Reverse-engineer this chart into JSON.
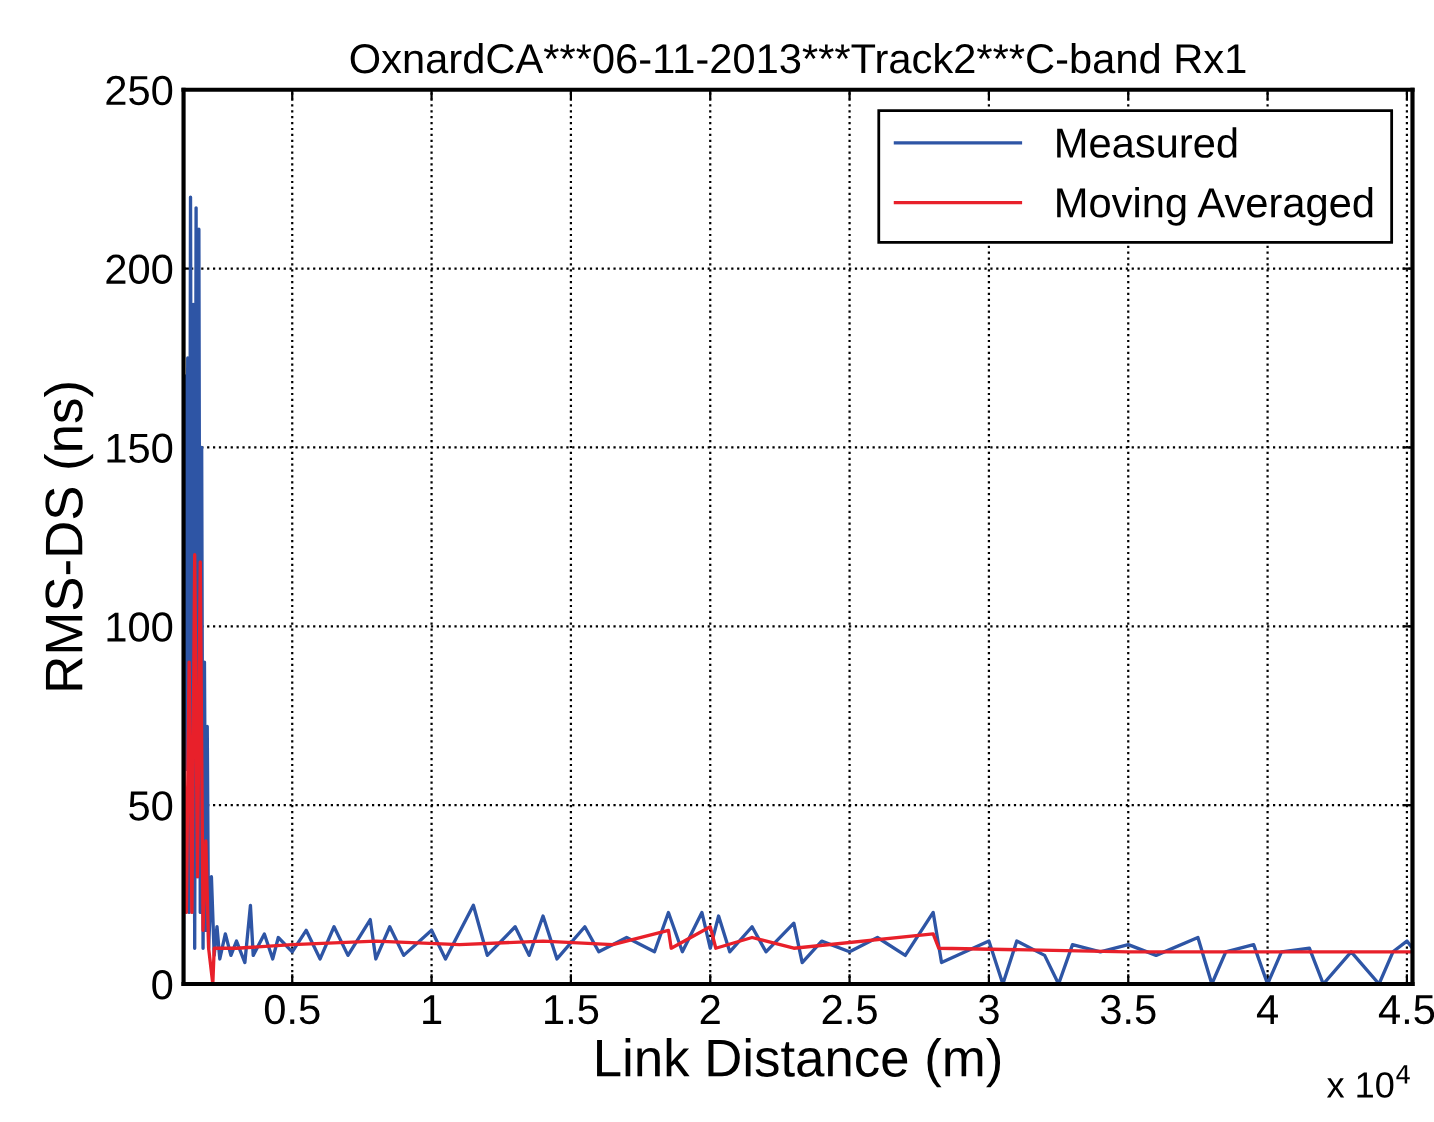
{
  "chart_data": {
    "type": "line",
    "title": "OxnardCA***06-11-2013***Track2***C-band Rx1",
    "xlabel": "Link Distance (m)",
    "ylabel": "RMS-DS (ns)",
    "annotations": [
      "x 10$^{4}$"
    ],
    "xlim": [
      0.11,
      4.52
    ],
    "ylim": [
      0,
      250
    ],
    "xticks": [
      0.5,
      1,
      1.5,
      2,
      2.5,
      3,
      3.5,
      4,
      4.5
    ],
    "yticks": [
      0,
      50,
      100,
      150,
      200,
      250
    ],
    "grid": true,
    "legend": "top right",
    "line_style": "solid",
    "marker": "none",
    "series": [
      {
        "name": "Measured",
        "color": "#2e55a5",
        "x": [
          0.11,
          0.115,
          0.12,
          0.125,
          0.13,
          0.135,
          0.14,
          0.145,
          0.15,
          0.155,
          0.16,
          0.165,
          0.17,
          0.175,
          0.18,
          0.185,
          0.19,
          0.195,
          0.2,
          0.21,
          0.22,
          0.23,
          0.24,
          0.26,
          0.28,
          0.3,
          0.33,
          0.35,
          0.36,
          0.4,
          0.43,
          0.45,
          0.5,
          0.55,
          0.6,
          0.65,
          0.7,
          0.78,
          0.8,
          0.85,
          0.9,
          1.0,
          1.05,
          1.15,
          1.2,
          1.3,
          1.35,
          1.4,
          1.45,
          1.55,
          1.6,
          1.7,
          1.8,
          1.85,
          1.9,
          1.97,
          2.0,
          2.03,
          2.07,
          2.15,
          2.2,
          2.3,
          2.33,
          2.4,
          2.5,
          2.6,
          2.7,
          2.8,
          2.83,
          3.0,
          3.05,
          3.1,
          3.2,
          3.25,
          3.3,
          3.4,
          3.5,
          3.6,
          3.75,
          3.8,
          3.85,
          3.95,
          4.0,
          4.05,
          4.15,
          4.2,
          4.3,
          4.4,
          4.45,
          4.5,
          4.52
        ],
        "values": [
          10,
          170,
          60,
          175,
          20,
          220,
          40,
          190,
          10,
          217,
          30,
          211,
          20,
          150,
          10,
          90,
          15,
          72,
          10,
          30,
          8,
          16,
          7,
          14,
          8,
          12,
          6,
          22,
          8,
          14,
          7,
          13,
          9,
          15,
          7,
          16,
          8,
          18,
          7,
          16,
          8,
          15,
          7,
          22,
          8,
          16,
          8,
          19,
          7,
          16,
          9,
          13,
          9,
          20,
          9,
          20,
          10,
          19,
          9,
          16,
          9,
          17,
          6,
          12,
          9,
          13,
          8,
          20,
          6,
          12,
          0,
          12,
          8,
          0,
          11,
          9,
          11,
          8,
          13,
          0,
          9,
          11,
          0,
          9,
          10,
          0,
          9,
          0,
          9,
          12,
          10
        ]
      },
      {
        "name": "Moving Averaged",
        "color": "#e8202a",
        "x": [
          0.11,
          0.12,
          0.13,
          0.14,
          0.15,
          0.16,
          0.17,
          0.18,
          0.19,
          0.2,
          0.215,
          0.22,
          0.3,
          0.5,
          0.8,
          1.1,
          1.4,
          1.65,
          1.85,
          1.86,
          2.0,
          2.02,
          2.15,
          2.3,
          2.8,
          2.82,
          3.5,
          4.0,
          4.52
        ],
        "values": [
          70,
          20,
          90,
          20,
          120,
          30,
          118,
          15,
          40,
          10,
          0,
          10,
          10,
          11,
          12,
          11,
          12,
          11,
          15,
          10,
          16,
          10,
          13,
          10,
          14,
          10,
          9,
          9,
          9
        ]
      }
    ]
  }
}
